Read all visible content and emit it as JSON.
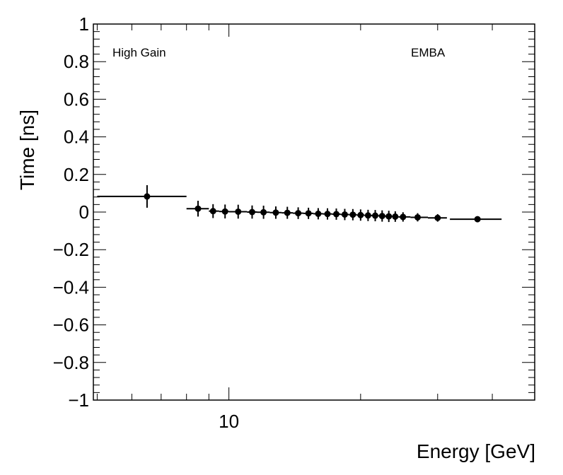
{
  "chart_data": {
    "type": "scatter",
    "title": "",
    "xlabel": "Energy [GeV]",
    "ylabel": "Time [ns]",
    "x_scale": "log",
    "xlim": [
      4.9,
      50
    ],
    "ylim": [
      -1,
      1
    ],
    "y_ticks": [
      -1,
      -0.8,
      -0.6,
      -0.4,
      -0.2,
      0,
      0.2,
      0.4,
      0.6,
      0.8,
      1
    ],
    "y_tick_labels": [
      "−1",
      "−0.8",
      "−0.6",
      "−0.4",
      "−0.2",
      "0",
      "0.2",
      "0.4",
      "0.6",
      "0.8",
      "1"
    ],
    "x_major_ticks": [
      10
    ],
    "x_tick_labels": [
      "10"
    ],
    "x_minor_ticks": [
      5,
      6,
      7,
      8,
      9,
      20,
      30,
      40,
      50
    ],
    "annotations": [
      "High Gain",
      "EMBA"
    ],
    "grid": false,
    "series": [
      {
        "name": "High Gain EMBA",
        "points": [
          {
            "x": 6.5,
            "xlo": 5.0,
            "xhi": 8.0,
            "y": 0.083,
            "yerr": 0.06
          },
          {
            "x": 8.5,
            "xlo": 8.0,
            "xhi": 9.0,
            "y": 0.018,
            "yerr": 0.042
          },
          {
            "x": 9.2,
            "xlo": 9.0,
            "xhi": 9.5,
            "y": 0.005,
            "yerr": 0.037
          },
          {
            "x": 9.8,
            "xlo": 9.5,
            "xhi": 10.0,
            "y": 0.003,
            "yerr": 0.037
          },
          {
            "x": 10.5,
            "xlo": 10.0,
            "xhi": 11.0,
            "y": 0.002,
            "yerr": 0.037
          },
          {
            "x": 11.3,
            "xlo": 11.0,
            "xhi": 11.6,
            "y": 0.0,
            "yerr": 0.035
          },
          {
            "x": 12.0,
            "xlo": 11.6,
            "xhi": 12.4,
            "y": -0.001,
            "yerr": 0.035
          },
          {
            "x": 12.8,
            "xlo": 12.4,
            "xhi": 13.2,
            "y": -0.003,
            "yerr": 0.033
          },
          {
            "x": 13.6,
            "xlo": 13.2,
            "xhi": 14.0,
            "y": -0.004,
            "yerr": 0.032
          },
          {
            "x": 14.4,
            "xlo": 14.0,
            "xhi": 14.8,
            "y": -0.006,
            "yerr": 0.031
          },
          {
            "x": 15.2,
            "xlo": 14.8,
            "xhi": 15.6,
            "y": -0.007,
            "yerr": 0.03
          },
          {
            "x": 16.0,
            "xlo": 15.6,
            "xhi": 16.4,
            "y": -0.009,
            "yerr": 0.03
          },
          {
            "x": 16.8,
            "xlo": 16.4,
            "xhi": 17.2,
            "y": -0.01,
            "yerr": 0.03
          },
          {
            "x": 17.6,
            "xlo": 17.2,
            "xhi": 18.0,
            "y": -0.011,
            "yerr": 0.03
          },
          {
            "x": 18.4,
            "xlo": 18.0,
            "xhi": 18.8,
            "y": -0.013,
            "yerr": 0.03
          },
          {
            "x": 19.2,
            "xlo": 18.8,
            "xhi": 19.6,
            "y": -0.014,
            "yerr": 0.03
          },
          {
            "x": 20.0,
            "xlo": 19.6,
            "xhi": 20.4,
            "y": -0.016,
            "yerr": 0.03
          },
          {
            "x": 20.8,
            "xlo": 20.4,
            "xhi": 21.2,
            "y": -0.018,
            "yerr": 0.03
          },
          {
            "x": 21.6,
            "xlo": 21.2,
            "xhi": 22.0,
            "y": -0.019,
            "yerr": 0.03
          },
          {
            "x": 22.4,
            "xlo": 22.0,
            "xhi": 22.8,
            "y": -0.021,
            "yerr": 0.03
          },
          {
            "x": 23.2,
            "xlo": 22.8,
            "xhi": 23.6,
            "y": -0.023,
            "yerr": 0.03
          },
          {
            "x": 24.0,
            "xlo": 23.6,
            "xhi": 24.4,
            "y": -0.024,
            "yerr": 0.028
          },
          {
            "x": 25.0,
            "xlo": 24.4,
            "xhi": 26.0,
            "y": -0.026,
            "yerr": 0.025
          },
          {
            "x": 27.0,
            "xlo": 26.0,
            "xhi": 28.5,
            "y": -0.028,
            "yerr": 0.022
          },
          {
            "x": 30.0,
            "xlo": 28.5,
            "xhi": 31.5,
            "y": -0.031,
            "yerr": 0.02
          },
          {
            "x": 37.0,
            "xlo": 32.0,
            "xhi": 42.0,
            "y": -0.038,
            "yerr": 0.01
          }
        ]
      }
    ]
  }
}
